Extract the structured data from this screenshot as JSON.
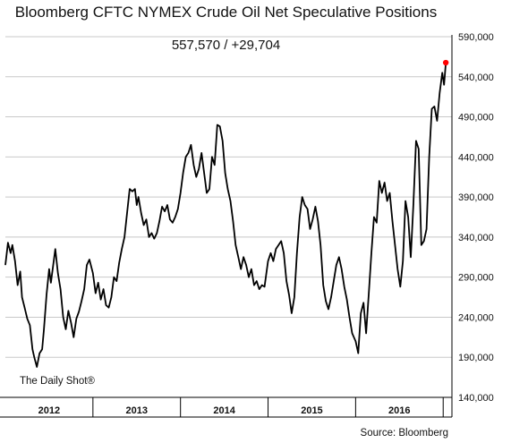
{
  "title": "Bloomberg CFTC NYMEX Crude Oil Net Speculative Positions",
  "subtitle": "557,570 / +29,704",
  "watermark": "The Daily Shot®",
  "source": "Source: Bloomberg",
  "colors": {
    "line": "#000000",
    "highlight": "#ff0000",
    "grid": "#c8c8c8",
    "axis": "#000000"
  },
  "chart_data": {
    "type": "line",
    "title": "Bloomberg CFTC NYMEX Crude Oil Net Speculative Positions",
    "ylim": [
      140000,
      590000
    ],
    "y_ticks": [
      "590,000",
      "540,000",
      "490,000",
      "440,000",
      "390,000",
      "340,000",
      "290,000",
      "240,000",
      "190,000",
      "140,000"
    ],
    "y_tick_values": [
      590000,
      540000,
      490000,
      440000,
      390000,
      340000,
      290000,
      240000,
      190000,
      140000
    ],
    "x_ticks": [
      "2012",
      "2013",
      "2014",
      "2015",
      "2016"
    ],
    "x_range": [
      2012.0,
      2017.1
    ],
    "grid": "horizontal",
    "last_value": 557570,
    "change": 29704,
    "series": [
      {
        "values": [
          [
            2012.0,
            305000
          ],
          [
            2012.03,
            333000
          ],
          [
            2012.06,
            320000
          ],
          [
            2012.08,
            330000
          ],
          [
            2012.11,
            310000
          ],
          [
            2012.14,
            280000
          ],
          [
            2012.17,
            297000
          ],
          [
            2012.19,
            265000
          ],
          [
            2012.22,
            252000
          ],
          [
            2012.25,
            238000
          ],
          [
            2012.28,
            230000
          ],
          [
            2012.31,
            200000
          ],
          [
            2012.33,
            190000
          ],
          [
            2012.36,
            178000
          ],
          [
            2012.39,
            195000
          ],
          [
            2012.42,
            200000
          ],
          [
            2012.44,
            225000
          ],
          [
            2012.47,
            268000
          ],
          [
            2012.5,
            300000
          ],
          [
            2012.52,
            283000
          ],
          [
            2012.55,
            308000
          ],
          [
            2012.57,
            325000
          ],
          [
            2012.6,
            295000
          ],
          [
            2012.63,
            275000
          ],
          [
            2012.66,
            240000
          ],
          [
            2012.69,
            225000
          ],
          [
            2012.72,
            248000
          ],
          [
            2012.75,
            233000
          ],
          [
            2012.78,
            215000
          ],
          [
            2012.81,
            238000
          ],
          [
            2012.84,
            247000
          ],
          [
            2012.87,
            260000
          ],
          [
            2012.9,
            275000
          ],
          [
            2012.93,
            305000
          ],
          [
            2012.96,
            312000
          ],
          [
            2013.0,
            295000
          ],
          [
            2013.03,
            270000
          ],
          [
            2013.06,
            283000
          ],
          [
            2013.09,
            262000
          ],
          [
            2013.12,
            275000
          ],
          [
            2013.15,
            255000
          ],
          [
            2013.18,
            252000
          ],
          [
            2013.21,
            265000
          ],
          [
            2013.24,
            290000
          ],
          [
            2013.27,
            285000
          ],
          [
            2013.3,
            308000
          ],
          [
            2013.33,
            325000
          ],
          [
            2013.36,
            340000
          ],
          [
            2013.39,
            370000
          ],
          [
            2013.42,
            400000
          ],
          [
            2013.45,
            397000
          ],
          [
            2013.48,
            400000
          ],
          [
            2013.5,
            380000
          ],
          [
            2013.52,
            390000
          ],
          [
            2013.55,
            370000
          ],
          [
            2013.58,
            355000
          ],
          [
            2013.61,
            362000
          ],
          [
            2013.64,
            340000
          ],
          [
            2013.67,
            345000
          ],
          [
            2013.7,
            338000
          ],
          [
            2013.73,
            345000
          ],
          [
            2013.76,
            360000
          ],
          [
            2013.79,
            378000
          ],
          [
            2013.82,
            372000
          ],
          [
            2013.85,
            380000
          ],
          [
            2013.88,
            362000
          ],
          [
            2013.91,
            358000
          ],
          [
            2013.94,
            365000
          ],
          [
            2013.97,
            375000
          ],
          [
            2014.0,
            395000
          ],
          [
            2014.03,
            420000
          ],
          [
            2014.06,
            440000
          ],
          [
            2014.09,
            445000
          ],
          [
            2014.12,
            455000
          ],
          [
            2014.15,
            430000
          ],
          [
            2014.18,
            415000
          ],
          [
            2014.21,
            425000
          ],
          [
            2014.24,
            445000
          ],
          [
            2014.27,
            420000
          ],
          [
            2014.3,
            395000
          ],
          [
            2014.33,
            400000
          ],
          [
            2014.36,
            440000
          ],
          [
            2014.39,
            430000
          ],
          [
            2014.42,
            480000
          ],
          [
            2014.45,
            478000
          ],
          [
            2014.48,
            460000
          ],
          [
            2014.51,
            420000
          ],
          [
            2014.54,
            400000
          ],
          [
            2014.57,
            385000
          ],
          [
            2014.6,
            360000
          ],
          [
            2014.63,
            330000
          ],
          [
            2014.66,
            315000
          ],
          [
            2014.69,
            300000
          ],
          [
            2014.72,
            315000
          ],
          [
            2014.75,
            305000
          ],
          [
            2014.78,
            290000
          ],
          [
            2014.81,
            300000
          ],
          [
            2014.84,
            280000
          ],
          [
            2014.87,
            285000
          ],
          [
            2014.9,
            275000
          ],
          [
            2014.93,
            280000
          ],
          [
            2014.96,
            278000
          ],
          [
            2015.0,
            310000
          ],
          [
            2015.03,
            320000
          ],
          [
            2015.06,
            310000
          ],
          [
            2015.09,
            325000
          ],
          [
            2015.12,
            330000
          ],
          [
            2015.15,
            335000
          ],
          [
            2015.18,
            320000
          ],
          [
            2015.21,
            285000
          ],
          [
            2015.24,
            268000
          ],
          [
            2015.27,
            245000
          ],
          [
            2015.3,
            265000
          ],
          [
            2015.33,
            320000
          ],
          [
            2015.36,
            365000
          ],
          [
            2015.39,
            390000
          ],
          [
            2015.42,
            380000
          ],
          [
            2015.45,
            375000
          ],
          [
            2015.48,
            350000
          ],
          [
            2015.51,
            362000
          ],
          [
            2015.54,
            378000
          ],
          [
            2015.57,
            360000
          ],
          [
            2015.6,
            330000
          ],
          [
            2015.63,
            280000
          ],
          [
            2015.66,
            260000
          ],
          [
            2015.69,
            250000
          ],
          [
            2015.72,
            265000
          ],
          [
            2015.75,
            285000
          ],
          [
            2015.78,
            305000
          ],
          [
            2015.81,
            315000
          ],
          [
            2015.84,
            300000
          ],
          [
            2015.87,
            278000
          ],
          [
            2015.9,
            262000
          ],
          [
            2015.93,
            240000
          ],
          [
            2015.96,
            220000
          ],
          [
            2016.0,
            210000
          ],
          [
            2016.03,
            195000
          ],
          [
            2016.06,
            245000
          ],
          [
            2016.09,
            258000
          ],
          [
            2016.12,
            220000
          ],
          [
            2016.15,
            268000
          ],
          [
            2016.18,
            320000
          ],
          [
            2016.21,
            365000
          ],
          [
            2016.24,
            358000
          ],
          [
            2016.27,
            410000
          ],
          [
            2016.3,
            395000
          ],
          [
            2016.33,
            408000
          ],
          [
            2016.36,
            385000
          ],
          [
            2016.39,
            395000
          ],
          [
            2016.42,
            360000
          ],
          [
            2016.45,
            330000
          ],
          [
            2016.48,
            300000
          ],
          [
            2016.51,
            278000
          ],
          [
            2016.54,
            310000
          ],
          [
            2016.57,
            385000
          ],
          [
            2016.6,
            365000
          ],
          [
            2016.63,
            315000
          ],
          [
            2016.66,
            380000
          ],
          [
            2016.69,
            460000
          ],
          [
            2016.72,
            450000
          ],
          [
            2016.75,
            330000
          ],
          [
            2016.78,
            335000
          ],
          [
            2016.81,
            350000
          ],
          [
            2016.84,
            440000
          ],
          [
            2016.87,
            500000
          ],
          [
            2016.9,
            503000
          ],
          [
            2016.93,
            485000
          ],
          [
            2016.96,
            520000
          ],
          [
            2016.99,
            545000
          ],
          [
            2017.01,
            530000
          ],
          [
            2017.03,
            557570
          ]
        ]
      }
    ]
  }
}
